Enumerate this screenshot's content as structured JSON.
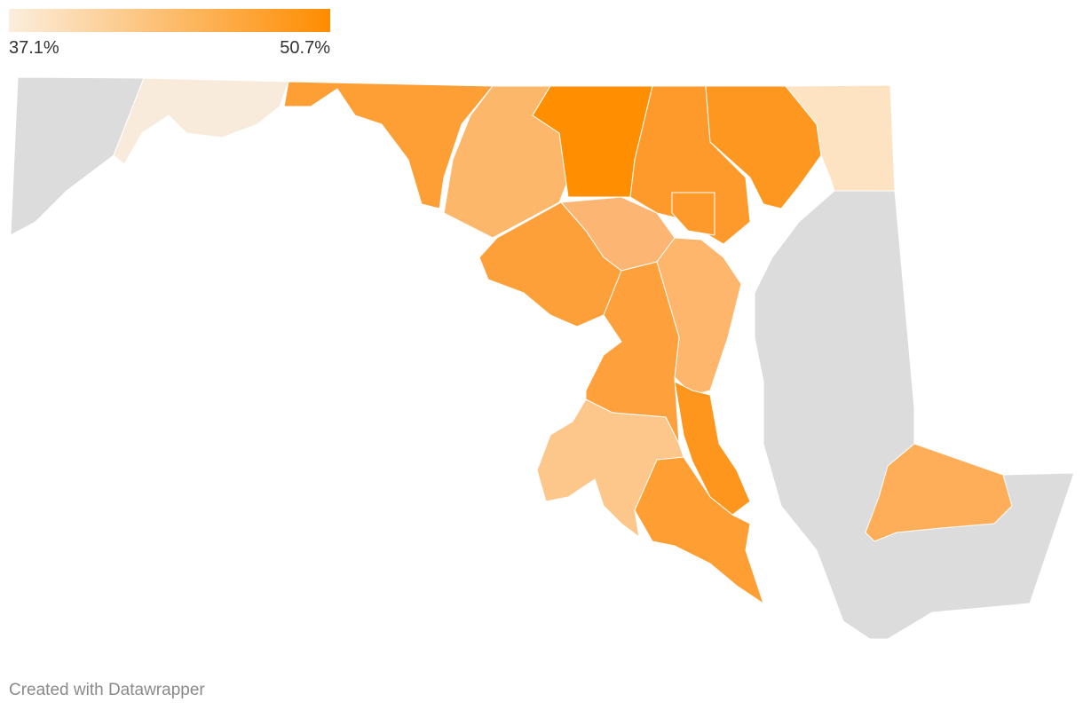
{
  "legend": {
    "min_label": "37.1%",
    "max_label": "50.7%"
  },
  "footer": "Created with Datawrapper"
}
